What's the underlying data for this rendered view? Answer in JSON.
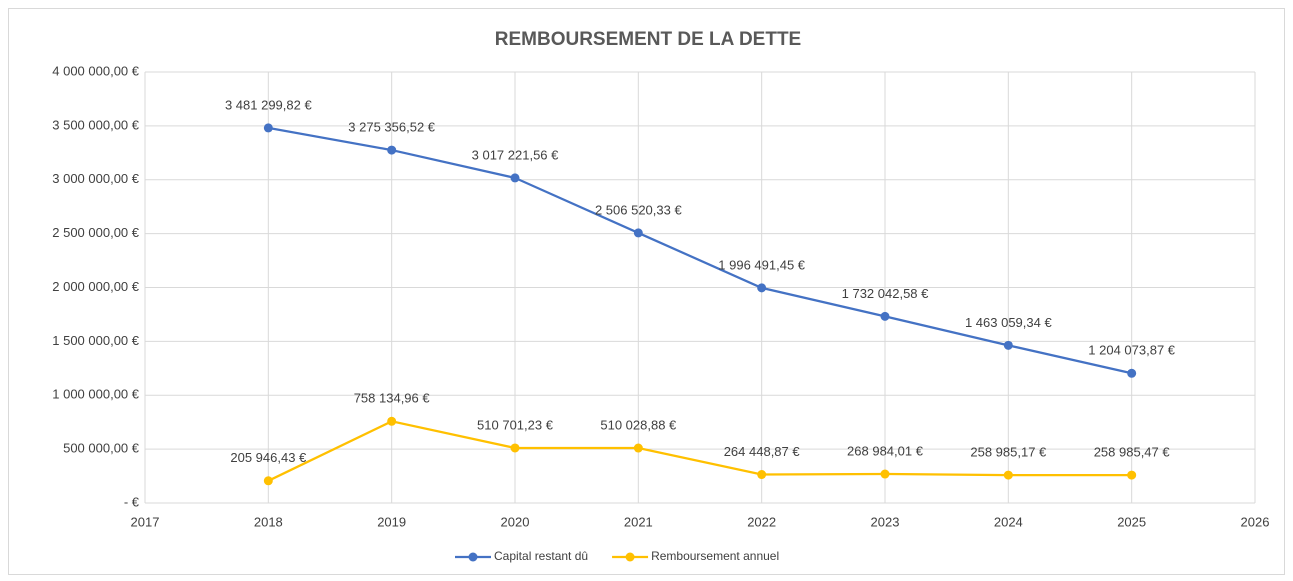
{
  "chart_data": {
    "type": "line",
    "title": "REMBOURSEMENT DE LA DETTE",
    "x": [
      2018,
      2019,
      2020,
      2021,
      2022,
      2023,
      2024,
      2025
    ],
    "xlim": [
      2017,
      2026
    ],
    "xticks": [
      2017,
      2018,
      2019,
      2020,
      2021,
      2022,
      2023,
      2024,
      2025,
      2026
    ],
    "ylim": [
      0,
      4000000
    ],
    "yticks": [
      {
        "value": 0,
        "label": "-   €"
      },
      {
        "value": 500000,
        "label": "500 000,00 €"
      },
      {
        "value": 1000000,
        "label": "1 000 000,00 €"
      },
      {
        "value": 1500000,
        "label": "1 500 000,00 €"
      },
      {
        "value": 2000000,
        "label": "2 000 000,00 €"
      },
      {
        "value": 2500000,
        "label": "2 500 000,00 €"
      },
      {
        "value": 3000000,
        "label": "3 000 000,00 €"
      },
      {
        "value": 3500000,
        "label": "3 500 000,00 €"
      },
      {
        "value": 4000000,
        "label": "4 000 000,00 €"
      }
    ],
    "grid": true,
    "legend": "bottom",
    "series": [
      {
        "name": "Capital restant dû",
        "color": "#4472c4",
        "values": [
          3481299.82,
          3275356.52,
          3017221.56,
          2506520.33,
          1996491.45,
          1732042.58,
          1463059.34,
          1204073.87
        ],
        "value_labels": [
          "3 481 299,82 €",
          "3 275 356,52 €",
          "3 017 221,56 €",
          "2 506 520,33 €",
          "1 996 491,45 €",
          "1 732 042,58 €",
          "1 463 059,34 €",
          "1 204 073,87 €"
        ]
      },
      {
        "name": "Remboursement annuel",
        "color": "#ffc000",
        "values": [
          205946.43,
          758134.96,
          510701.23,
          510028.88,
          264448.87,
          268984.01,
          258985.17,
          258985.47
        ],
        "value_labels": [
          "205 946,43 €",
          "758 134,96 €",
          "510 701,23 €",
          "510 028,88 €",
          "264 448,87 €",
          "268 984,01 €",
          "258 985,17 €",
          "258 985,47 €"
        ]
      }
    ]
  }
}
